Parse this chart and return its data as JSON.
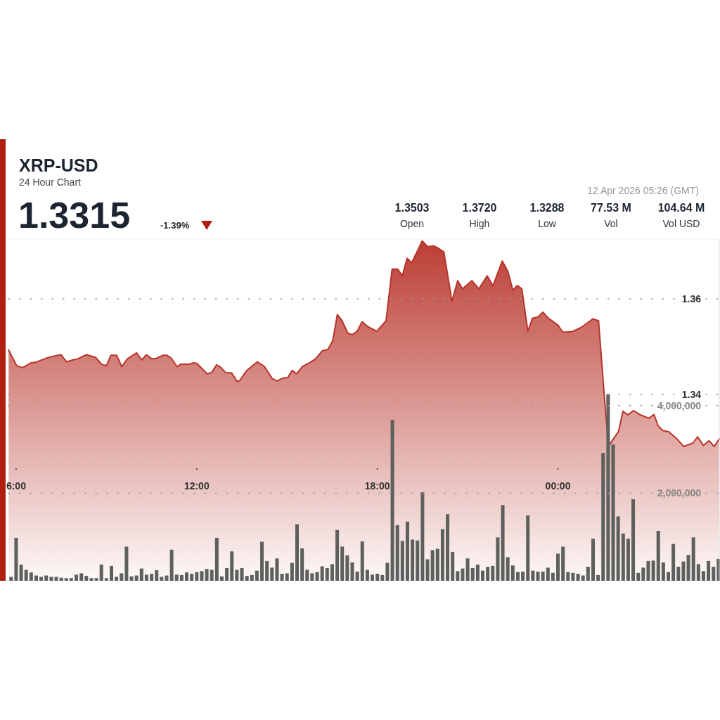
{
  "chart_data": {
    "type": "area",
    "title": "XRP-USD",
    "subtitle": "24 Hour Chart",
    "annotations": [
      "1.3315",
      "-1.39%",
      "1.3503",
      "Open",
      "1.3720",
      "High",
      "1.3288",
      "Low",
      "77.53 M",
      "Vol",
      "104.64 M",
      "Vol USD",
      "12 Apr 2026 05:26 (GMT)"
    ],
    "xlim": [
      5.745,
      29.36
    ],
    "xticks": [
      {
        "value": 6,
        "label": "6:00"
      },
      {
        "value": 12,
        "label": "12:00"
      },
      {
        "value": 18,
        "label": "18:00"
      },
      {
        "value": 24,
        "label": "00:00"
      }
    ],
    "ylim": [
      1.301,
      1.3725
    ],
    "yticks": [
      1.34,
      1.36
    ],
    "y2lim": [
      0,
      7800000
    ],
    "y2ticks": [
      {
        "value": 2000000,
        "label": "2,000,000"
      },
      {
        "value": 4000000,
        "label": "4,000,000"
      }
    ],
    "grid": "y",
    "series": [
      {
        "color": "#b8342a",
        "x": [
          5.75,
          6.02,
          6.22,
          6.49,
          6.64,
          7.1,
          7.49,
          7.68,
          7.87,
          8.03,
          8.34,
          8.65,
          8.84,
          9.0,
          9.15,
          9.34,
          9.51,
          9.69,
          10.0,
          10.17,
          10.33,
          10.5,
          10.65,
          10.88,
          11.0,
          11.15,
          11.35,
          11.46,
          11.73,
          11.89,
          12.0,
          12.35,
          12.5,
          12.66,
          12.81,
          12.97,
          13.16,
          13.34,
          13.43,
          13.66,
          14.01,
          14.24,
          14.51,
          14.67,
          14.86,
          15.02,
          15.17,
          15.32,
          15.51,
          15.74,
          15.94,
          16.17,
          16.36,
          16.52,
          16.67,
          16.83,
          17.02,
          17.17,
          17.33,
          17.49,
          17.68,
          17.98,
          18.29,
          18.49,
          18.68,
          18.83,
          18.99,
          19.14,
          19.49,
          19.68,
          19.87,
          20.02,
          20.21,
          20.48,
          20.67,
          20.83,
          21.14,
          21.37,
          21.65,
          21.84,
          22.15,
          22.34,
          22.5,
          22.65,
          22.8,
          23.0,
          23.15,
          23.34,
          23.5,
          23.69,
          24.0,
          24.16,
          24.46,
          24.77,
          25.16,
          25.35,
          25.53,
          25.68,
          26.01,
          26.16,
          26.32,
          26.51,
          26.71,
          27.02,
          27.19,
          27.33,
          27.49,
          27.68,
          27.95,
          28.18,
          28.48,
          28.64,
          28.83,
          29.02,
          29.19,
          29.36
        ],
        "values": [
          1.3493,
          1.346,
          1.3456,
          1.3466,
          1.3467,
          1.3478,
          1.3483,
          1.3468,
          1.3472,
          1.3474,
          1.3483,
          1.3477,
          1.3463,
          1.346,
          1.3482,
          1.3482,
          1.3458,
          1.3474,
          1.3487,
          1.3472,
          1.3483,
          1.3475,
          1.3475,
          1.3482,
          1.3482,
          1.3476,
          1.3458,
          1.3463,
          1.3463,
          1.3466,
          1.3465,
          1.3443,
          1.3446,
          1.3462,
          1.3456,
          1.3445,
          1.3445,
          1.3427,
          1.3429,
          1.345,
          1.3468,
          1.3459,
          1.3433,
          1.3428,
          1.3434,
          1.3435,
          1.345,
          1.3443,
          1.3458,
          1.3466,
          1.3474,
          1.3491,
          1.3494,
          1.3513,
          1.3567,
          1.3554,
          1.3528,
          1.3525,
          1.3532,
          1.3552,
          1.3542,
          1.3532,
          1.3554,
          1.3662,
          1.3662,
          1.3648,
          1.3685,
          1.3675,
          1.3721,
          1.3709,
          1.3711,
          1.3706,
          1.3698,
          1.3595,
          1.3638,
          1.3621,
          1.3638,
          1.3621,
          1.3648,
          1.3627,
          1.3679,
          1.3657,
          1.3618,
          1.3628,
          1.3621,
          1.3532,
          1.3559,
          1.3562,
          1.3572,
          1.3559,
          1.3545,
          1.353,
          1.3531,
          1.354,
          1.3558,
          1.3554,
          1.3405,
          1.3292,
          1.3322,
          1.3365,
          1.3357,
          1.3366,
          1.3358,
          1.335,
          1.3358,
          1.3334,
          1.3324,
          1.3322,
          1.3307,
          1.3291,
          1.3298,
          1.3311,
          1.3293,
          1.3303,
          1.3291,
          1.3307
        ]
      },
      {
        "type": "bar",
        "axis": "y2",
        "color": "#5d605c",
        "x": [
          5.833,
          6,
          6.167,
          6.333,
          6.5,
          6.667,
          6.833,
          7,
          7.167,
          7.333,
          7.5,
          7.667,
          7.833,
          8,
          8.167,
          8.333,
          8.5,
          8.667,
          8.833,
          9,
          9.167,
          9.333,
          9.5,
          9.667,
          9.833,
          10,
          10.167,
          10.333,
          10.5,
          10.667,
          10.833,
          11,
          11.167,
          11.333,
          11.5,
          11.667,
          11.833,
          12,
          12.167,
          12.333,
          12.5,
          12.667,
          12.833,
          13,
          13.167,
          13.333,
          13.5,
          13.667,
          13.833,
          14,
          14.167,
          14.333,
          14.5,
          14.667,
          14.833,
          15,
          15.167,
          15.333,
          15.5,
          15.667,
          15.833,
          16,
          16.167,
          16.333,
          16.5,
          16.667,
          16.833,
          17,
          17.167,
          17.333,
          17.5,
          17.667,
          17.833,
          18,
          18.167,
          18.333,
          18.5,
          18.667,
          18.833,
          19,
          19.167,
          19.333,
          19.5,
          19.667,
          19.833,
          20,
          20.167,
          20.333,
          20.5,
          20.667,
          20.833,
          21,
          21.167,
          21.333,
          21.5,
          21.667,
          21.833,
          22,
          22.167,
          22.333,
          22.5,
          22.667,
          22.833,
          23,
          23.167,
          23.333,
          23.5,
          23.667,
          23.833,
          24,
          24.167,
          24.333,
          24.5,
          24.667,
          24.833,
          25,
          25.167,
          25.333,
          25.5,
          25.667,
          25.833,
          26,
          26.167,
          26.333,
          26.5,
          26.667,
          26.833,
          27,
          27.167,
          27.333,
          27.5,
          27.667,
          27.833,
          28,
          28.167,
          28.333,
          28.5,
          28.667,
          28.833,
          29,
          29.167,
          29.333
        ],
        "values": [
          90000,
          980000,
          370000,
          250000,
          190000,
          120000,
          90000,
          120000,
          90000,
          90000,
          70000,
          60000,
          60000,
          140000,
          170000,
          110000,
          60000,
          60000,
          370000,
          60000,
          340000,
          90000,
          170000,
          780000,
          100000,
          120000,
          280000,
          140000,
          160000,
          240000,
          90000,
          120000,
          710000,
          140000,
          130000,
          190000,
          160000,
          200000,
          220000,
          270000,
          250000,
          980000,
          100000,
          290000,
          670000,
          250000,
          290000,
          110000,
          130000,
          230000,
          890000,
          450000,
          300000,
          510000,
          160000,
          170000,
          410000,
          1290000,
          740000,
          250000,
          170000,
          200000,
          330000,
          290000,
          380000,
          1160000,
          780000,
          580000,
          420000,
          210000,
          900000,
          250000,
          140000,
          160000,
          130000,
          410000,
          3670000,
          1270000,
          910000,
          1350000,
          940000,
          920000,
          2020000,
          490000,
          700000,
          730000,
          1180000,
          1520000,
          660000,
          220000,
          280000,
          510000,
          290000,
          370000,
          230000,
          320000,
          340000,
          990000,
          1730000,
          540000,
          350000,
          200000,
          210000,
          1490000,
          230000,
          210000,
          210000,
          300000,
          180000,
          620000,
          780000,
          200000,
          180000,
          160000,
          120000,
          320000,
          960000,
          130000,
          2920000,
          4260000,
          3110000,
          1470000,
          1080000,
          960000,
          1860000,
          180000,
          300000,
          450000,
          460000,
          1140000,
          420000,
          200000,
          840000,
          320000,
          440000,
          590000,
          990000,
          380000,
          220000,
          450000,
          320000,
          500000
        ]
      }
    ]
  }
}
